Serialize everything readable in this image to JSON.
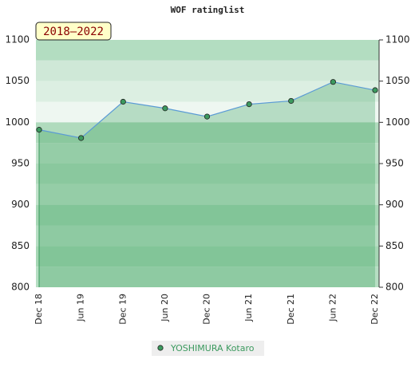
{
  "chart_data": {
    "type": "area",
    "title": "WOF ratinglist",
    "annotation": "2018–2022",
    "categories": [
      "Dec 18",
      "Jun 19",
      "Dec 19",
      "Jun 20",
      "Dec 20",
      "Jun 21",
      "Dec 21",
      "Jun 22",
      "Dec 22"
    ],
    "series": [
      {
        "name": "YOSHIMURA Kotaro",
        "color": "#5b9bd5",
        "marker_color": "#3c9a5f",
        "values": [
          991,
          981,
          1025,
          1017,
          1007,
          1022,
          1026,
          1049,
          1039
        ]
      }
    ],
    "ylim": [
      800,
      1100
    ],
    "yticks": [
      800,
      850,
      900,
      950,
      1000,
      1050,
      1100
    ],
    "grid": true
  }
}
